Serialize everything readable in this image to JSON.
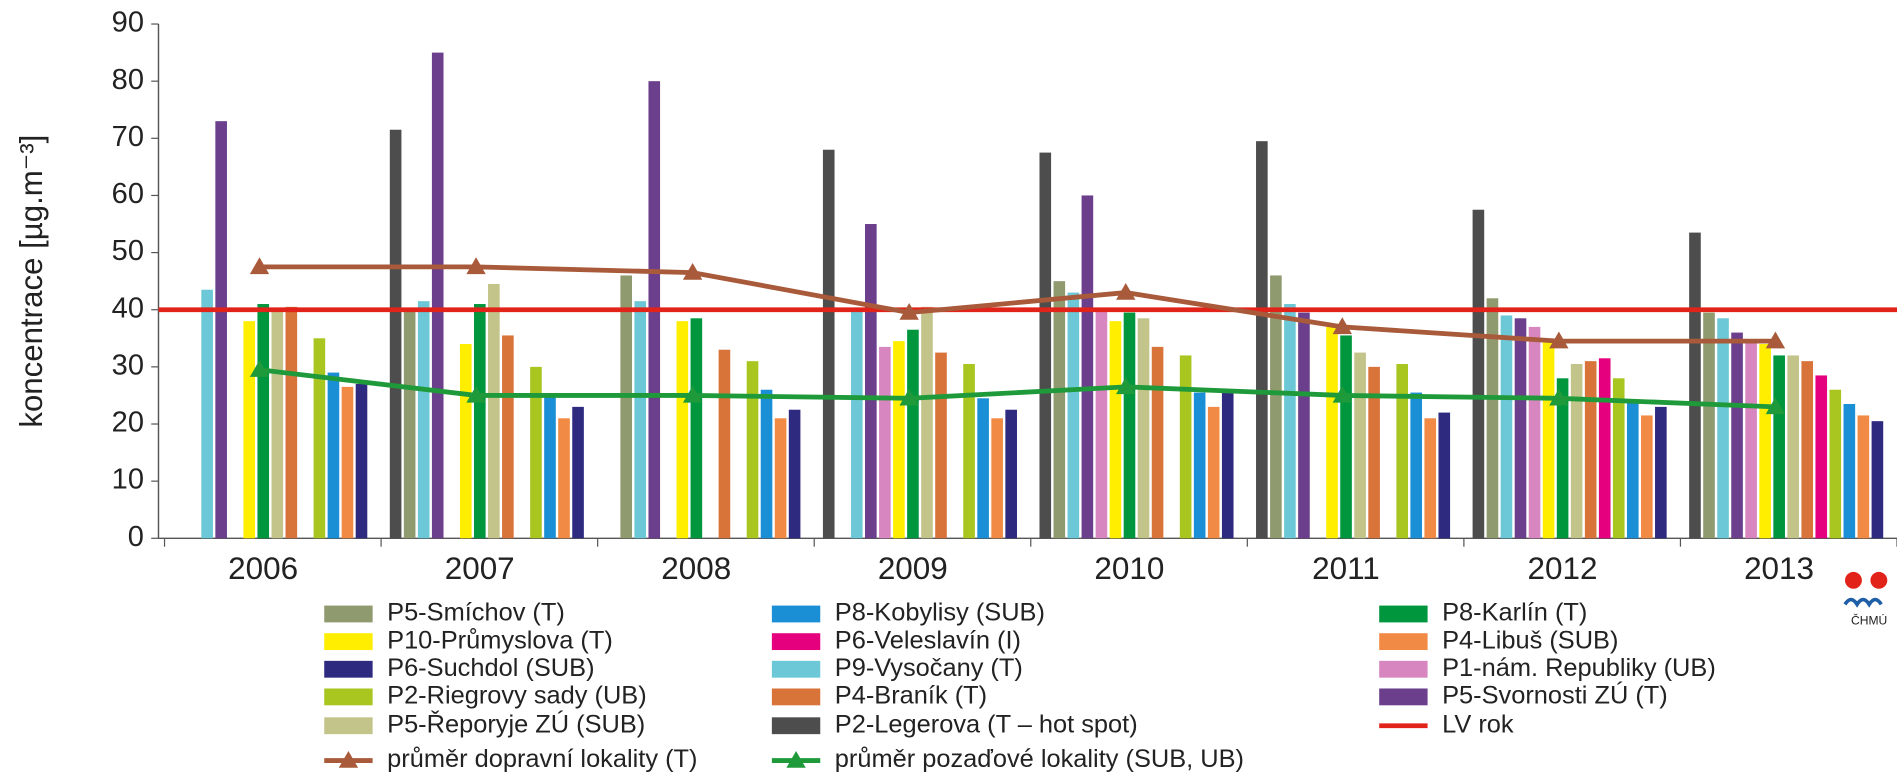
{
  "chart_data": {
    "type": "bar",
    "ylabel": "koncentrace [µg.m⁻³]",
    "categories": [
      "2006",
      "2007",
      "2008",
      "2009",
      "2010",
      "2011",
      "2012",
      "2013"
    ],
    "ylim": [
      0,
      90
    ],
    "yticks": [
      0,
      10,
      20,
      30,
      40,
      50,
      60,
      70,
      80,
      90
    ],
    "series": [
      {
        "name": "P5-Smíchov (T)",
        "type": "bar",
        "color": "#8f9a6f",
        "values": [
          null,
          40,
          46,
          null,
          45,
          46,
          42,
          39.5
        ]
      },
      {
        "name": "P10-Průmyslova (T)",
        "type": "bar",
        "color": "#ffee00",
        "values": [
          38,
          34,
          38,
          34.5,
          38,
          37,
          34.5,
          34
        ]
      },
      {
        "name": "P6-Suchdol (SUB)",
        "type": "bar",
        "color": "#2e2a80",
        "values": [
          27,
          23,
          22.5,
          22.5,
          25.5,
          22,
          23,
          20.5
        ]
      },
      {
        "name": "P2-Riegrovy sady (UB)",
        "type": "bar",
        "color": "#a8c520",
        "values": [
          35,
          30,
          31,
          30.5,
          32,
          30.5,
          28,
          26
        ]
      },
      {
        "name": "P5-Řeporyje ZÚ (SUB)",
        "type": "bar",
        "color": "#c2c48a",
        "values": [
          40,
          44.5,
          null,
          40.5,
          38.5,
          32.5,
          30.5,
          32
        ]
      },
      {
        "name": "průměr dopravní lokality (T)",
        "type": "line",
        "marker": "triangle",
        "color": "#a85a3a",
        "values": [
          47.5,
          47.5,
          46.5,
          39.5,
          43,
          37,
          34.5,
          34.5
        ]
      },
      {
        "name": "P8-Kobylisy (SUB)",
        "type": "bar",
        "color": "#1a8fd6",
        "values": [
          29,
          25,
          26,
          24.5,
          25.5,
          25.5,
          24,
          23.5
        ]
      },
      {
        "name": "P6-Veleslavín (I)",
        "type": "bar",
        "color": "#e5007e",
        "values": [
          null,
          null,
          null,
          null,
          null,
          null,
          31.5,
          28.5
        ]
      },
      {
        "name": "P9-Vysočany (T)",
        "type": "bar",
        "color": "#6cc8d6",
        "values": [
          43.5,
          41.5,
          41.5,
          40,
          43,
          41,
          39,
          38.5
        ]
      },
      {
        "name": "P4-Braník (T)",
        "type": "bar",
        "color": "#d8733a",
        "values": [
          40.5,
          35.5,
          33,
          32.5,
          33.5,
          30,
          31,
          31
        ]
      },
      {
        "name": "P2-Legerova (T – hot spot)",
        "type": "bar",
        "color": "#4d4d4d",
        "values": [
          null,
          71.5,
          null,
          68,
          67.5,
          69.5,
          57.5,
          53.5
        ]
      },
      {
        "name": "průměr pozaďové lokality (SUB, UB)",
        "type": "line",
        "marker": "triangle",
        "color": "#1f9a3a",
        "values": [
          29.5,
          25,
          25,
          24.5,
          26.5,
          25,
          24.5,
          23
        ]
      },
      {
        "name": "P8-Karlín (T)",
        "type": "bar",
        "color": "#00963e",
        "values": [
          41,
          41,
          38.5,
          36.5,
          39.5,
          35.5,
          28,
          32
        ]
      },
      {
        "name": "P4-Libuš (SUB)",
        "type": "bar",
        "color": "#f08a44",
        "values": [
          26.5,
          21,
          21,
          21,
          23,
          21,
          21.5,
          21.5
        ]
      },
      {
        "name": "P1-nám. Republiky (UB)",
        "type": "bar",
        "color": "#d886c0",
        "values": [
          null,
          null,
          null,
          33.5,
          40,
          null,
          37,
          34.5
        ]
      },
      {
        "name": "P5-Svornosti ZÚ (T)",
        "type": "bar",
        "color": "#6b3f8c",
        "values": [
          73,
          85,
          80,
          55,
          60,
          39.5,
          38.5,
          36
        ]
      },
      {
        "name": "LV rok",
        "type": "line",
        "marker": "none",
        "color": "#e2231a",
        "values": [
          40,
          40,
          40,
          40,
          40,
          40,
          40,
          40
        ]
      }
    ]
  },
  "logo_text": "ČHMÚ"
}
